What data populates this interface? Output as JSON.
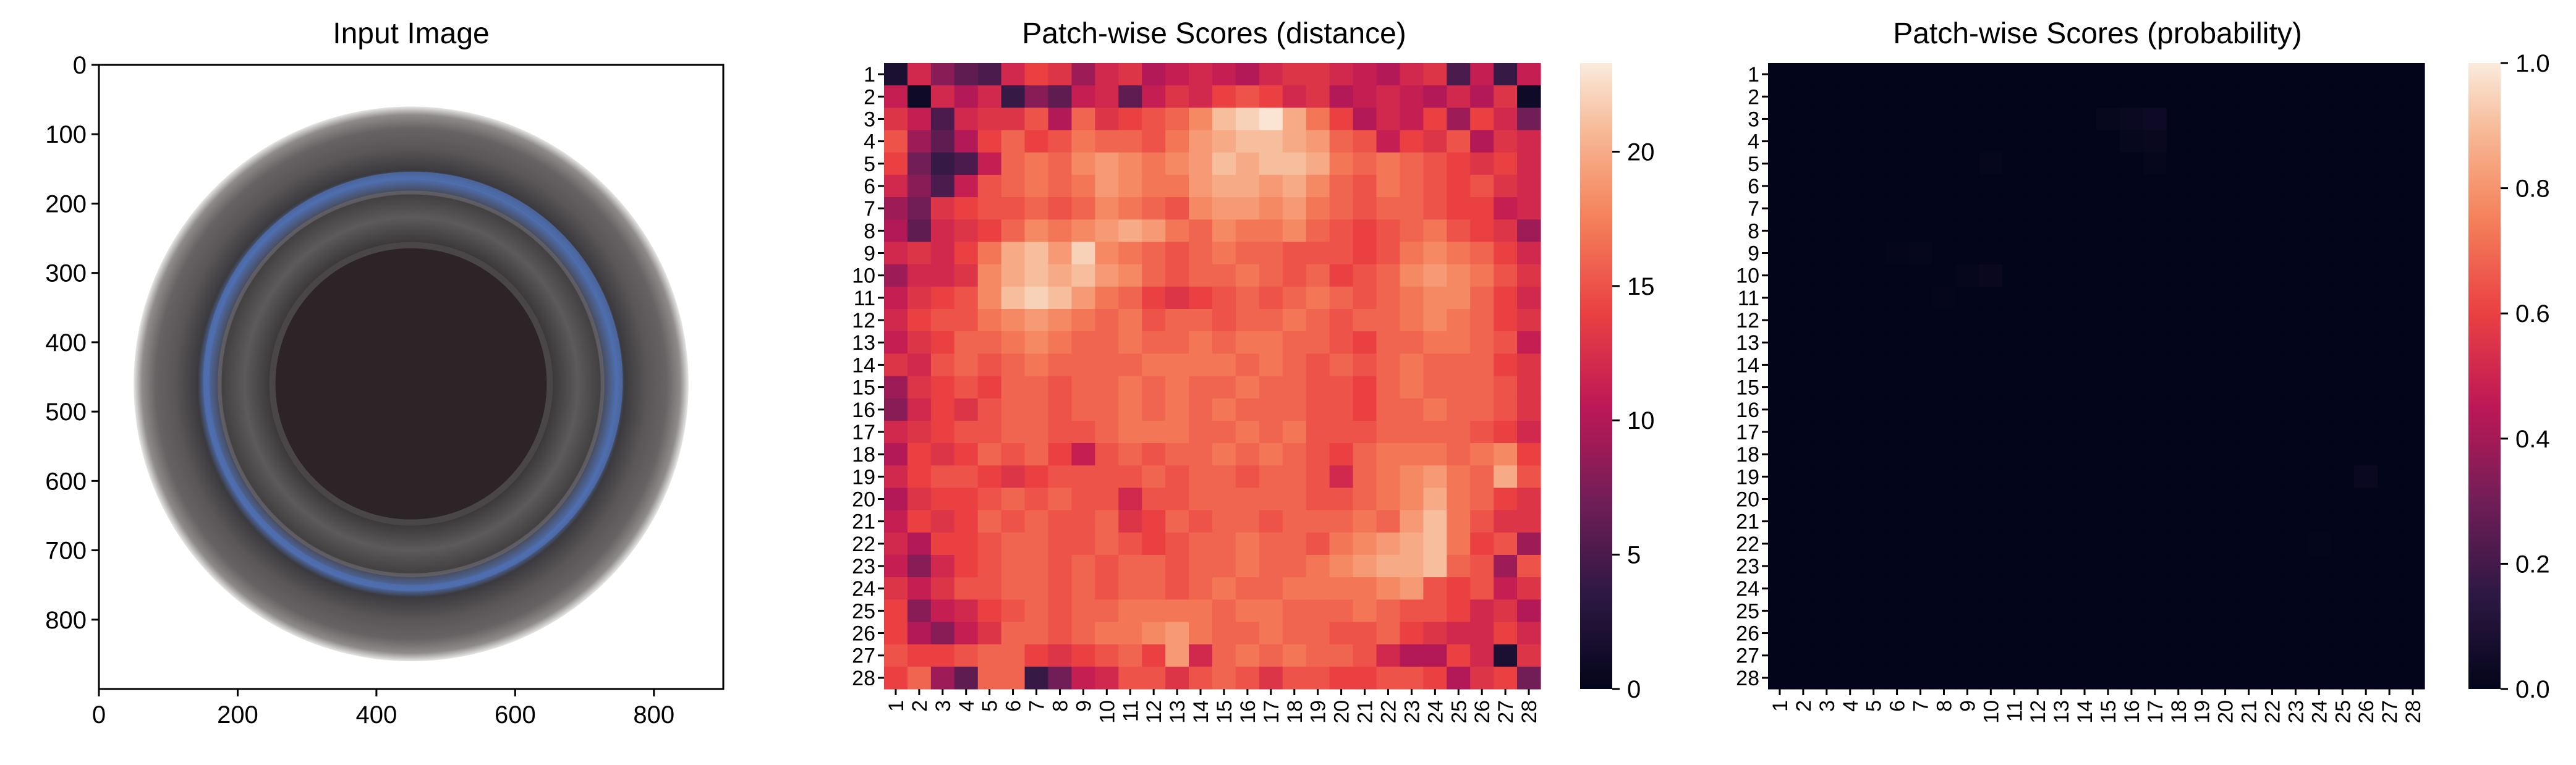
{
  "chart_data": [
    {
      "type": "image",
      "title": "Input Image",
      "xlabel": "",
      "ylabel": "",
      "xlim": [
        0,
        900
      ],
      "ylim": [
        900,
        0
      ],
      "x_ticks": [
        "0",
        "200",
        "400",
        "600",
        "800"
      ],
      "y_ticks": [
        "0",
        "100",
        "200",
        "300",
        "400",
        "500",
        "600",
        "700",
        "800"
      ],
      "image": {
        "subject": "top-down view of a dark bottle opening with a blue-tinted rim on white background",
        "center": [
          450,
          460
        ],
        "outer_radius": 400,
        "inner_radius": 200,
        "colors": {
          "background": "#ffffff",
          "rim_outer": "#5a5657",
          "rim_mid": "#454244",
          "blue_ring": "#4f6fb0",
          "inner": "#2c2427"
        }
      }
    },
    {
      "type": "heatmap",
      "title": "Patch-wise Scores (distance)",
      "xlabel": "",
      "ylabel": "",
      "rows": 28,
      "cols": 28,
      "x_ticks": [
        "1",
        "2",
        "3",
        "4",
        "5",
        "6",
        "7",
        "8",
        "9",
        "10",
        "11",
        "12",
        "13",
        "14",
        "15",
        "16",
        "17",
        "18",
        "19",
        "20",
        "21",
        "22",
        "23",
        "24",
        "25",
        "26",
        "27",
        "28"
      ],
      "y_ticks": [
        "1",
        "2",
        "3",
        "4",
        "5",
        "6",
        "7",
        "8",
        "9",
        "10",
        "11",
        "12",
        "13",
        "14",
        "15",
        "16",
        "17",
        "18",
        "19",
        "20",
        "21",
        "22",
        "23",
        "24",
        "25",
        "26",
        "27",
        "28"
      ],
      "colormap": "rocket",
      "vmin": 0,
      "vmax": 23.3,
      "colorbar_ticks": [
        0,
        5,
        10,
        15,
        20
      ],
      "values": [
        [
          2,
          12,
          8,
          6,
          5,
          12,
          14,
          13,
          9,
          12,
          13,
          10,
          11,
          12,
          11,
          10,
          12,
          13,
          13,
          12,
          11,
          10,
          12,
          13,
          5,
          11,
          4,
          11
        ],
        [
          11,
          1,
          12,
          10,
          12,
          4,
          8,
          6,
          11,
          12,
          6,
          11,
          13,
          12,
          14,
          15,
          14,
          12,
          13,
          10,
          11,
          12,
          11,
          10,
          12,
          10,
          13,
          1
        ],
        [
          13,
          11,
          5,
          12,
          13,
          13,
          15,
          10,
          16,
          13,
          14,
          15,
          16,
          18,
          21,
          22,
          23,
          20,
          17,
          14,
          10,
          12,
          11,
          14,
          9,
          14,
          12,
          7
        ],
        [
          15,
          9,
          6,
          10,
          14,
          16,
          14,
          15,
          17,
          16,
          16,
          15,
          17,
          19,
          20,
          21,
          21,
          20,
          19,
          16,
          15,
          11,
          14,
          13,
          15,
          10,
          13,
          12
        ],
        [
          14,
          7,
          4,
          5,
          11,
          16,
          17,
          16,
          18,
          19,
          18,
          17,
          18,
          19,
          21,
          20,
          21,
          21,
          20,
          17,
          16,
          17,
          16,
          15,
          14,
          13,
          14,
          12
        ],
        [
          12,
          8,
          5,
          11,
          15,
          16,
          17,
          16,
          17,
          19,
          18,
          17,
          17,
          19,
          20,
          20,
          19,
          20,
          18,
          16,
          15,
          17,
          16,
          15,
          14,
          15,
          13,
          12
        ],
        [
          9,
          7,
          13,
          14,
          15,
          15,
          16,
          15,
          16,
          18,
          17,
          16,
          15,
          18,
          19,
          19,
          18,
          19,
          17,
          16,
          15,
          16,
          16,
          15,
          14,
          14,
          11,
          12
        ],
        [
          10,
          6,
          12,
          13,
          14,
          16,
          18,
          17,
          18,
          19,
          20,
          19,
          17,
          16,
          18,
          17,
          17,
          18,
          16,
          15,
          14,
          15,
          16,
          17,
          15,
          14,
          13,
          9
        ],
        [
          12,
          13,
          12,
          14,
          17,
          20,
          21,
          19,
          22,
          18,
          17,
          16,
          15,
          16,
          17,
          16,
          16,
          15,
          15,
          15,
          14,
          15,
          17,
          18,
          17,
          16,
          14,
          12
        ],
        [
          9,
          12,
          12,
          13,
          18,
          20,
          21,
          20,
          21,
          19,
          18,
          16,
          15,
          16,
          16,
          17,
          16,
          15,
          16,
          14,
          15,
          16,
          18,
          19,
          18,
          17,
          15,
          13
        ],
        [
          11,
          13,
          14,
          15,
          18,
          21,
          22,
          21,
          19,
          17,
          16,
          14,
          13,
          14,
          15,
          16,
          15,
          16,
          17,
          16,
          15,
          16,
          17,
          18,
          18,
          16,
          14,
          12
        ],
        [
          12,
          14,
          15,
          15,
          17,
          18,
          19,
          18,
          17,
          16,
          17,
          15,
          16,
          16,
          15,
          16,
          16,
          17,
          16,
          15,
          16,
          16,
          17,
          18,
          17,
          16,
          14,
          13
        ],
        [
          11,
          13,
          14,
          16,
          16,
          17,
          18,
          17,
          16,
          16,
          17,
          16,
          16,
          17,
          16,
          17,
          17,
          16,
          16,
          15,
          14,
          16,
          16,
          17,
          17,
          16,
          15,
          11
        ],
        [
          13,
          12,
          15,
          16,
          15,
          16,
          17,
          16,
          16,
          16,
          16,
          17,
          17,
          17,
          17,
          16,
          17,
          16,
          15,
          16,
          15,
          16,
          17,
          16,
          16,
          16,
          14,
          13
        ],
        [
          9,
          13,
          14,
          15,
          14,
          16,
          16,
          15,
          16,
          16,
          17,
          16,
          17,
          16,
          16,
          17,
          16,
          16,
          15,
          15,
          14,
          16,
          17,
          16,
          16,
          16,
          15,
          13
        ],
        [
          8,
          12,
          14,
          13,
          15,
          16,
          16,
          15,
          16,
          16,
          17,
          16,
          17,
          16,
          17,
          16,
          16,
          16,
          15,
          15,
          14,
          16,
          16,
          17,
          16,
          16,
          15,
          13
        ],
        [
          12,
          13,
          14,
          15,
          15,
          16,
          16,
          15,
          15,
          16,
          17,
          17,
          17,
          16,
          16,
          17,
          16,
          17,
          15,
          15,
          15,
          16,
          16,
          16,
          16,
          15,
          14,
          12
        ],
        [
          10,
          14,
          13,
          14,
          16,
          15,
          16,
          14,
          11,
          15,
          16,
          15,
          16,
          16,
          17,
          16,
          17,
          16,
          15,
          14,
          16,
          17,
          17,
          17,
          16,
          17,
          18,
          14
        ],
        [
          12,
          14,
          15,
          15,
          14,
          13,
          14,
          15,
          15,
          15,
          15,
          16,
          15,
          16,
          16,
          15,
          16,
          16,
          15,
          12,
          16,
          17,
          18,
          19,
          17,
          16,
          20,
          15
        ],
        [
          10,
          13,
          14,
          14,
          15,
          16,
          15,
          16,
          15,
          15,
          12,
          15,
          15,
          16,
          16,
          16,
          16,
          16,
          15,
          15,
          16,
          17,
          18,
          20,
          17,
          16,
          14,
          13
        ],
        [
          11,
          14,
          13,
          14,
          16,
          15,
          16,
          15,
          15,
          16,
          13,
          14,
          16,
          15,
          16,
          16,
          15,
          16,
          16,
          16,
          17,
          16,
          19,
          21,
          17,
          15,
          13,
          13
        ],
        [
          12,
          10,
          14,
          14,
          15,
          16,
          16,
          15,
          15,
          16,
          15,
          14,
          15,
          16,
          16,
          17,
          16,
          16,
          15,
          17,
          18,
          19,
          20,
          21,
          17,
          14,
          15,
          9
        ],
        [
          11,
          8,
          12,
          14,
          15,
          16,
          16,
          15,
          16,
          15,
          16,
          16,
          15,
          16,
          16,
          17,
          16,
          16,
          17,
          18,
          19,
          20,
          20,
          21,
          16,
          15,
          9,
          15
        ],
        [
          13,
          11,
          13,
          15,
          15,
          16,
          16,
          15,
          16,
          15,
          16,
          16,
          15,
          16,
          17,
          16,
          16,
          17,
          17,
          17,
          17,
          18,
          19,
          15,
          14,
          15,
          11,
          13
        ],
        [
          14,
          8,
          11,
          12,
          14,
          15,
          16,
          15,
          16,
          16,
          17,
          17,
          17,
          17,
          16,
          17,
          17,
          16,
          16,
          16,
          17,
          16,
          15,
          15,
          14,
          12,
          13,
          10
        ],
        [
          14,
          10,
          8,
          11,
          13,
          16,
          16,
          15,
          16,
          17,
          17,
          18,
          19,
          17,
          16,
          16,
          17,
          16,
          16,
          15,
          15,
          16,
          14,
          13,
          12,
          12,
          14,
          12
        ],
        [
          15,
          14,
          14,
          15,
          16,
          16,
          14,
          13,
          14,
          15,
          16,
          14,
          19,
          12,
          16,
          17,
          16,
          17,
          16,
          16,
          15,
          12,
          10,
          10,
          14,
          12,
          2,
          13
        ],
        [
          14,
          16,
          9,
          6,
          16,
          16,
          4,
          7,
          11,
          12,
          15,
          15,
          13,
          15,
          16,
          15,
          13,
          15,
          15,
          14,
          14,
          15,
          15,
          14,
          10,
          13,
          14,
          7
        ]
      ]
    },
    {
      "type": "heatmap",
      "title": "Patch-wise Scores (probability)",
      "xlabel": "",
      "ylabel": "",
      "rows": 28,
      "cols": 28,
      "x_ticks": [
        "1",
        "2",
        "3",
        "4",
        "5",
        "6",
        "7",
        "8",
        "9",
        "10",
        "11",
        "12",
        "13",
        "14",
        "15",
        "16",
        "17",
        "18",
        "19",
        "20",
        "21",
        "22",
        "23",
        "24",
        "25",
        "26",
        "27",
        "28"
      ],
      "y_ticks": [
        "1",
        "2",
        "3",
        "4",
        "5",
        "6",
        "7",
        "8",
        "9",
        "10",
        "11",
        "12",
        "13",
        "14",
        "15",
        "16",
        "17",
        "18",
        "19",
        "20",
        "21",
        "22",
        "23",
        "24",
        "25",
        "26",
        "27",
        "28"
      ],
      "colormap": "rocket",
      "vmin": 0.0,
      "vmax": 1.0,
      "colorbar_ticks": [
        "0.0",
        "0.2",
        "0.4",
        "0.6",
        "0.8",
        "1.0"
      ],
      "baseline_value": 0.0,
      "nonzero_cells": [
        {
          "row": 3,
          "col": 16,
          "value": 0.03
        },
        {
          "row": 3,
          "col": 17,
          "value": 0.04
        },
        {
          "row": 3,
          "col": 15,
          "value": 0.015
        },
        {
          "row": 4,
          "col": 16,
          "value": 0.015
        },
        {
          "row": 4,
          "col": 17,
          "value": 0.02
        },
        {
          "row": 5,
          "col": 17,
          "value": 0.01
        },
        {
          "row": 5,
          "col": 10,
          "value": 0.01
        },
        {
          "row": 9,
          "col": 7,
          "value": 0.01
        },
        {
          "row": 9,
          "col": 6,
          "value": 0.008
        },
        {
          "row": 10,
          "col": 10,
          "value": 0.02
        },
        {
          "row": 10,
          "col": 9,
          "value": 0.01
        },
        {
          "row": 11,
          "col": 8,
          "value": 0.008
        },
        {
          "row": 19,
          "col": 26,
          "value": 0.025
        },
        {
          "row": 22,
          "col": 24,
          "value": 0.005
        }
      ]
    }
  ]
}
